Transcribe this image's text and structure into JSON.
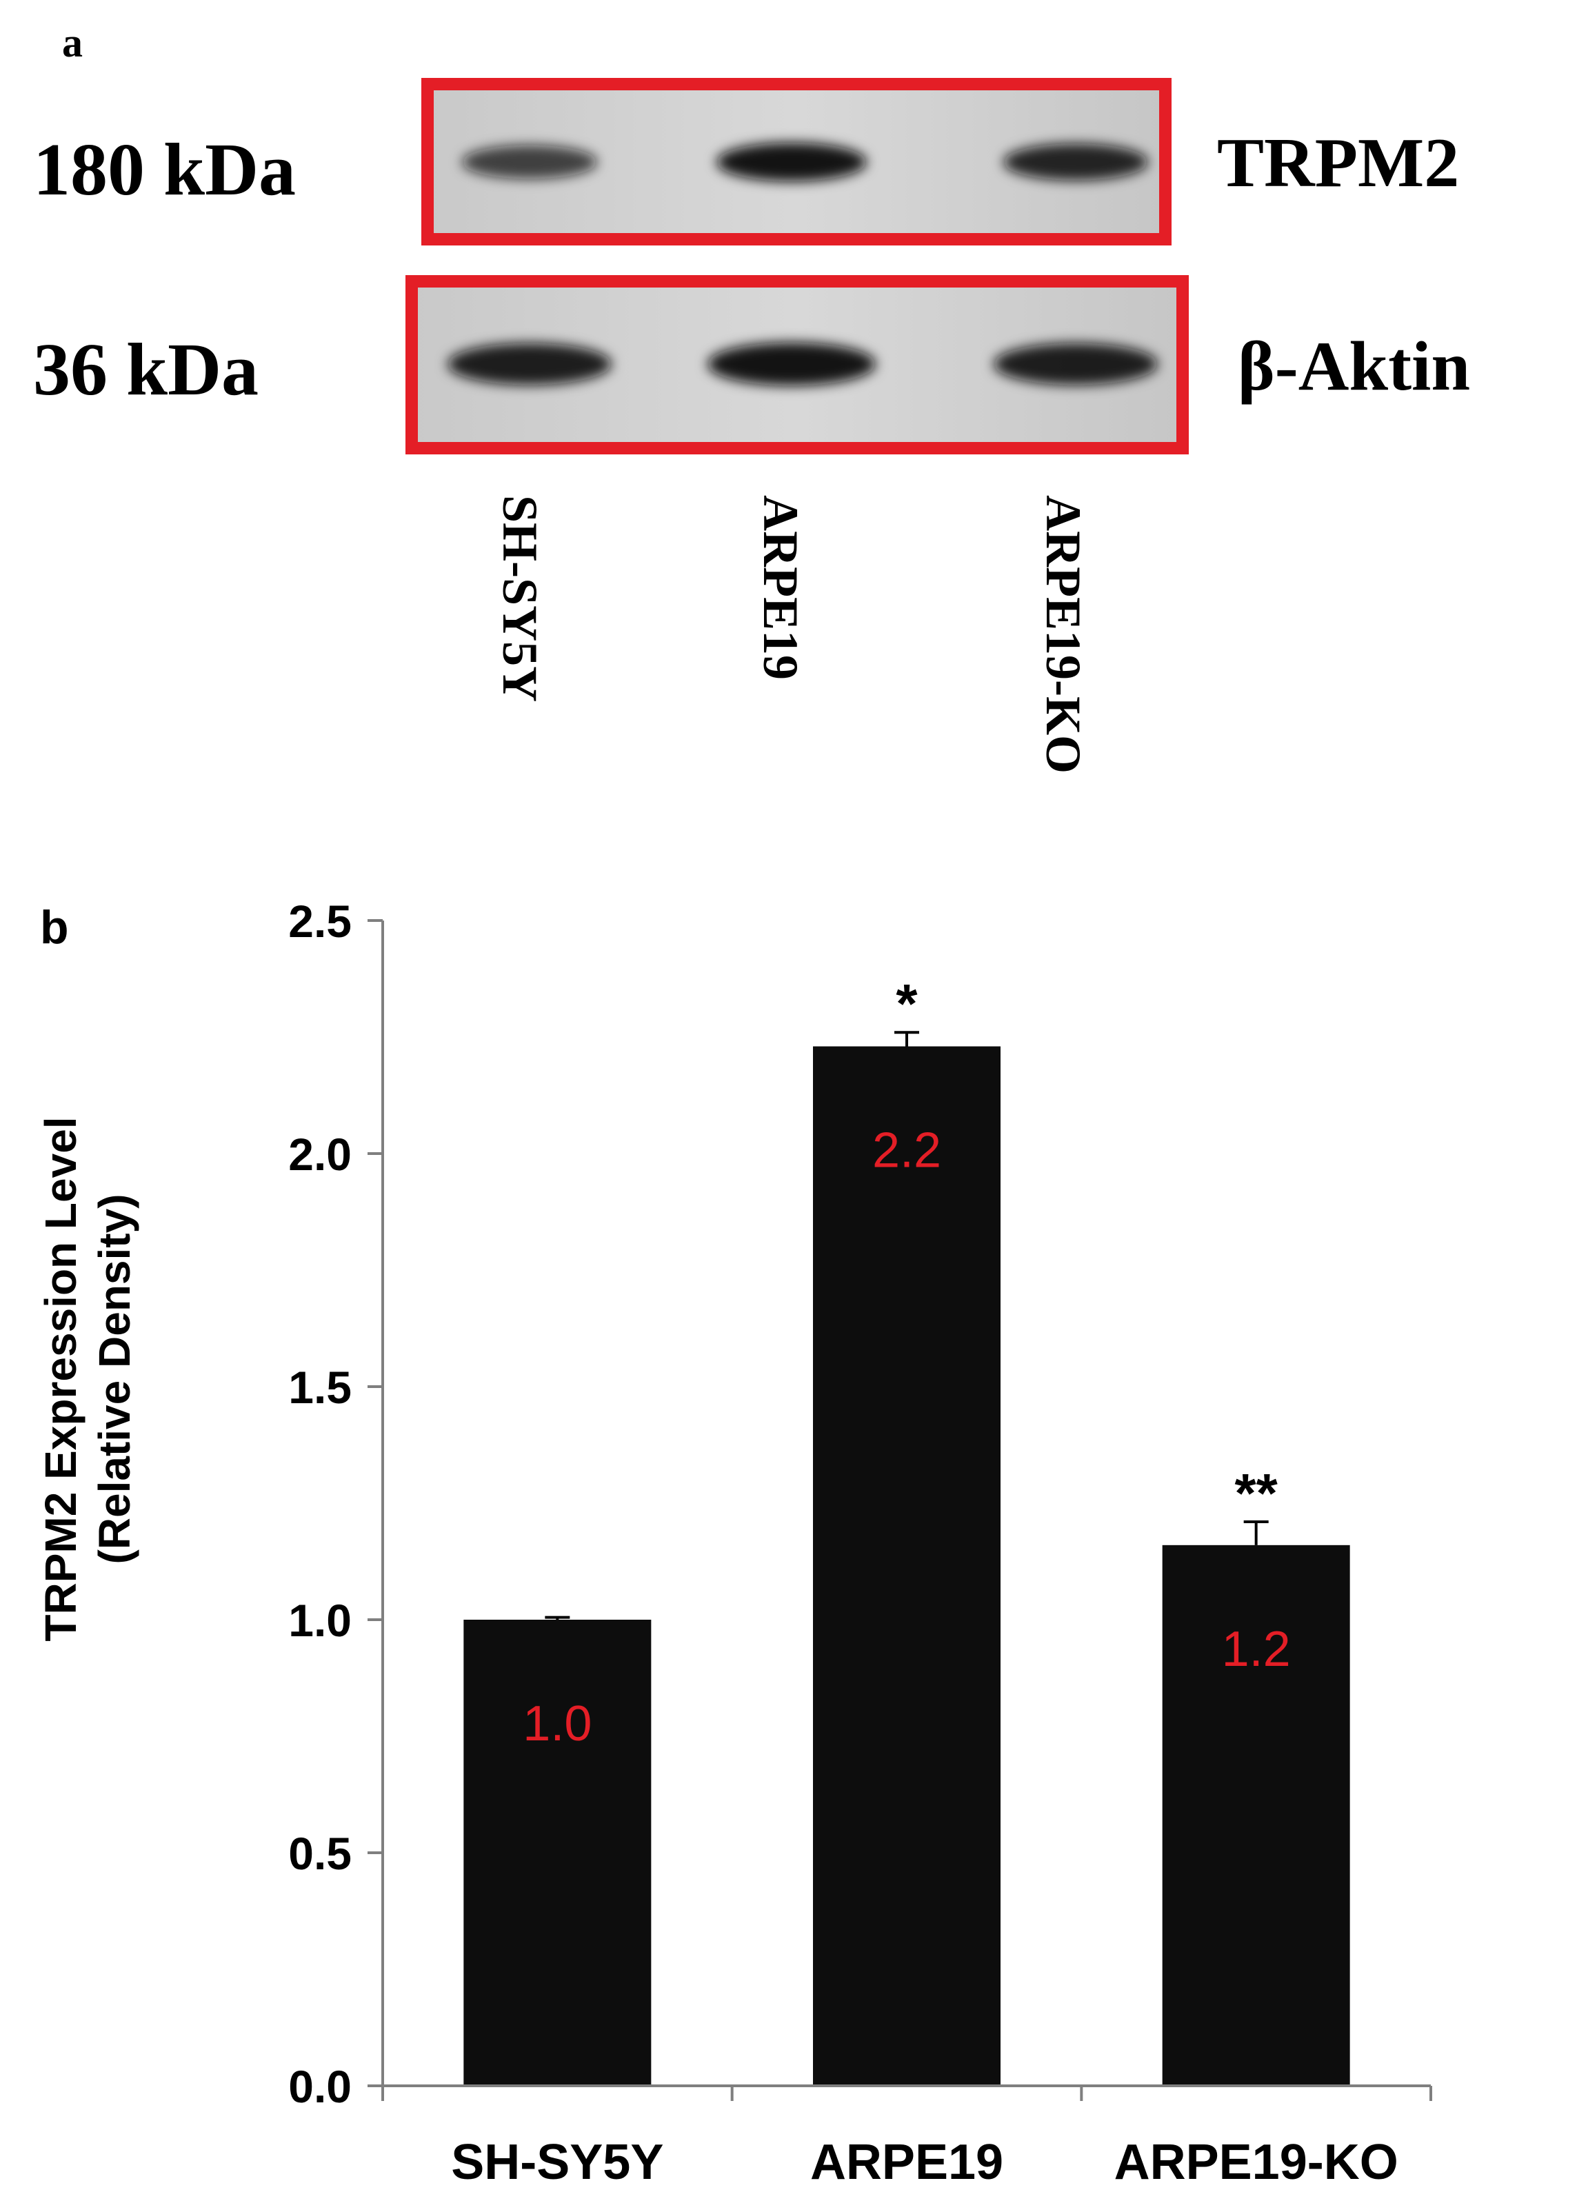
{
  "panel_a": {
    "label": "a",
    "rows": [
      {
        "weight": "180 kDa",
        "protein": "TRPM2",
        "band_intensity": [
          0.55,
          0.95,
          0.8
        ]
      },
      {
        "weight": "36 kDa",
        "protein": "β-Aktin",
        "band_intensity": [
          0.85,
          0.95,
          0.85
        ]
      }
    ],
    "lanes": [
      "SH-SY5Y",
      "ARPE19",
      "ARPE19-KO"
    ],
    "box_color": "#e41e26"
  },
  "chart_data": {
    "type": "bar",
    "panel_label": "b",
    "categories": [
      "SH-SY5Y",
      "ARPE19",
      "ARPE19-KO"
    ],
    "values": [
      1.0,
      2.23,
      1.16
    ],
    "errors": [
      0.005,
      0.03,
      0.05
    ],
    "data_labels": [
      "1.0",
      "2.2",
      "1.2"
    ],
    "significance": [
      "",
      "*",
      "**"
    ],
    "ylabel_line1": "TRPM2 Expression Level",
    "ylabel_line2": "(Relative Density)",
    "ylim": [
      0,
      2.5
    ],
    "yticks": [
      "0.0",
      "0.5",
      "1.0",
      "1.5",
      "2.0",
      "2.5"
    ],
    "bar_color": "#0d0d0d",
    "label_color": "#e41e26"
  }
}
